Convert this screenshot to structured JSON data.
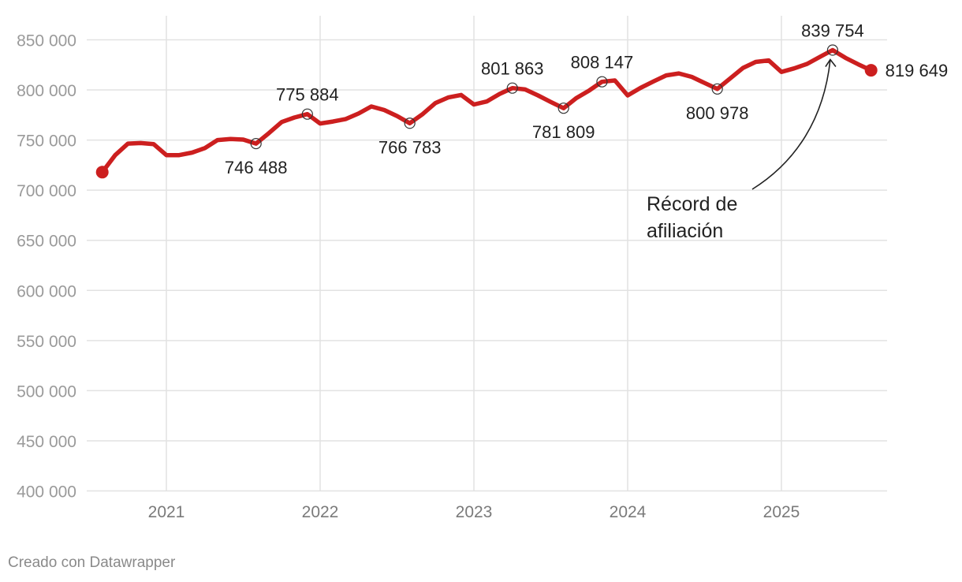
{
  "chart_data": {
    "type": "line",
    "title": "",
    "xlabel": "",
    "ylabel": "",
    "ylim": [
      400000,
      850000
    ],
    "yticks": [
      850000,
      800000,
      750000,
      700000,
      650000,
      600000,
      550000,
      500000,
      450000,
      400000
    ],
    "ytick_labels": [
      "850 000",
      "800 000",
      "750 000",
      "700 000",
      "650 000",
      "600 000",
      "550 000",
      "500 000",
      "450 000",
      "400 000"
    ],
    "xticks": [
      2021,
      2022,
      2023,
      2024,
      2025
    ],
    "xtick_labels": [
      "2021",
      "2022",
      "2023",
      "2024",
      "2025"
    ],
    "xlim": [
      2020.5,
      2025.7
    ],
    "grid": true,
    "series": [
      {
        "name": "Afiliación",
        "x": [
          2020.583,
          2020.667,
          2020.75,
          2020.833,
          2020.917,
          2021.0,
          2021.083,
          2021.167,
          2021.25,
          2021.333,
          2021.417,
          2021.5,
          2021.583,
          2021.667,
          2021.75,
          2021.833,
          2021.917,
          2022.0,
          2022.083,
          2022.167,
          2022.25,
          2022.333,
          2022.417,
          2022.5,
          2022.583,
          2022.667,
          2022.75,
          2022.833,
          2022.917,
          2023.0,
          2023.083,
          2023.167,
          2023.25,
          2023.333,
          2023.417,
          2023.5,
          2023.583,
          2023.667,
          2023.75,
          2023.833,
          2023.917,
          2024.0,
          2024.083,
          2024.167,
          2024.25,
          2024.333,
          2024.417,
          2024.5,
          2024.583,
          2024.667,
          2024.75,
          2024.833,
          2024.917,
          2025.0,
          2025.083,
          2025.167,
          2025.25,
          2025.333,
          2025.417,
          2025.5,
          2025.583
        ],
        "values": [
          718000,
          735000,
          746500,
          747000,
          746000,
          735000,
          735000,
          737500,
          742000,
          750000,
          751000,
          750500,
          746488,
          757000,
          768000,
          772500,
          775884,
          766500,
          768500,
          771000,
          776500,
          783500,
          780000,
          774000,
          766783,
          776000,
          787000,
          792500,
          795000,
          785500,
          788500,
          796000,
          801863,
          800500,
          794500,
          788000,
          781809,
          792000,
          799500,
          808147,
          809500,
          794500,
          802000,
          808500,
          814500,
          816500,
          813000,
          807000,
          800978,
          811500,
          822000,
          828000,
          829500,
          818000,
          821500,
          826000,
          833000,
          839754,
          832000,
          825500,
          819649
        ]
      }
    ],
    "point_labels": [
      {
        "x": 2021.583,
        "value": 746488,
        "text": "746 488",
        "position": "below"
      },
      {
        "x": 2021.917,
        "value": 775884,
        "text": "775 884",
        "position": "above"
      },
      {
        "x": 2022.583,
        "value": 766783,
        "text": "766 783",
        "position": "below"
      },
      {
        "x": 2023.25,
        "value": 801863,
        "text": "801 863",
        "position": "above"
      },
      {
        "x": 2023.583,
        "value": 781809,
        "text": "781 809",
        "position": "below"
      },
      {
        "x": 2023.833,
        "value": 808147,
        "text": "808 147",
        "position": "above"
      },
      {
        "x": 2024.583,
        "value": 800978,
        "text": "800 978",
        "position": "below"
      },
      {
        "x": 2025.333,
        "value": 839754,
        "text": "839 754",
        "position": "above"
      },
      {
        "x": 2025.583,
        "value": 819649,
        "text": "819 649",
        "position": "right"
      }
    ],
    "annotation": {
      "lines": [
        "Récord de",
        "afiliación"
      ],
      "target_x": 2025.333,
      "target_value": 839754
    },
    "line_color": "#cc1f1f",
    "grid_color": "#e2e2e2"
  },
  "credit": "Creado con Datawrapper"
}
